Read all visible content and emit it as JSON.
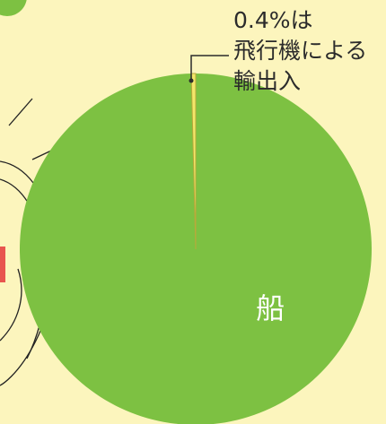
{
  "chart_data": {
    "type": "pie",
    "categories": [
      "船",
      null
    ],
    "values": [
      99.6,
      0.4
    ],
    "value_labels": [
      null,
      "0.4%"
    ],
    "colors": [
      "#7dc142",
      "#f3e66a"
    ],
    "annotation": [
      "は",
      "飛行機による",
      "輸出入"
    ]
  }
}
